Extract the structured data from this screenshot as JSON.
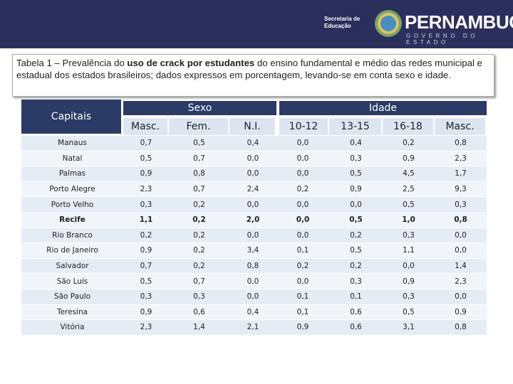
{
  "header": {
    "secretaria": "Secretaria de Educação",
    "brand": "PERNAMBUCO",
    "brand_sub": "GOVERNO DO ESTADO"
  },
  "caption": {
    "before": "Tabela 1 – Prevalência do ",
    "bold": "uso de crack por estudantes",
    "after": " do ensino fundamental e médio das redes municipal e estadual dos estados brasileiros; dados expressos em porcentagem, levando-se em conta sexo e idade."
  },
  "table": {
    "row_header": "Capitais",
    "groups": [
      "Sexo",
      "Idade"
    ],
    "columns": [
      "Masc.",
      "Fem.",
      "N.I.",
      "10-12",
      "13-15",
      "16-18",
      "Masc."
    ],
    "rows": [
      [
        "Manaus",
        "0,7",
        "0,5",
        "0,4",
        "0,0",
        "0,4",
        "0,2",
        "0,8"
      ],
      [
        "Natal",
        "0,5",
        "0,7",
        "0,0",
        "0,0",
        "0,3",
        "0,9",
        "2,3"
      ],
      [
        "Palmas",
        "0,9",
        "0,8",
        "0,0",
        "0,0",
        "0,5",
        "4,5",
        "1,7"
      ],
      [
        "Porto Alegre",
        "2,3",
        "0,7",
        "2,4",
        "0,2",
        "0,9",
        "2,5",
        "9,3"
      ],
      [
        "Porto Velho",
        "0,3",
        "0,2",
        "0,0",
        "0,0",
        "0,0",
        "0,5",
        "0,3"
      ],
      [
        "Recife",
        "1,1",
        "0,2",
        "2,0",
        "0,0",
        "0,5",
        "1,0",
        "0,8"
      ],
      [
        "Rio Branco",
        "0,2",
        "0,2",
        "0,0",
        "0,0",
        "0,2",
        "0,3",
        "0,0"
      ],
      [
        "Rio de Janeiro",
        "0,9",
        "0,2",
        "3,4",
        "0,1",
        "0,5",
        "1,1",
        "0,0"
      ],
      [
        "Salvador",
        "0,7",
        "0,2",
        "0,8",
        "0,2",
        "0,2",
        "0,0",
        "1,4"
      ],
      [
        "São Luís",
        "0,5",
        "0,7",
        "0,0",
        "0,0",
        "0,3",
        "0,9",
        "2,3"
      ],
      [
        "São Paulo",
        "0,3",
        "0,3",
        "0,0",
        "0,1",
        "0,1",
        "0,3",
        "0,0"
      ],
      [
        "Teresina",
        "0,9",
        "0,6",
        "0,4",
        "0,1",
        "0,6",
        "0,5",
        "0,9"
      ],
      [
        "Vitória",
        "2,3",
        "1,4",
        "2,1",
        "0,9",
        "0,6",
        "3,1",
        "0,8"
      ]
    ]
  }
}
